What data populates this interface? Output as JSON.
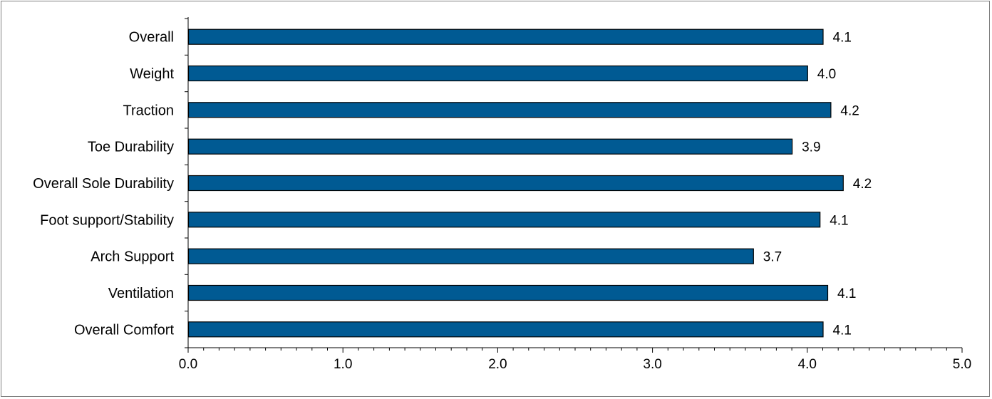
{
  "chart_data": {
    "type": "bar",
    "orientation": "horizontal",
    "title": "",
    "xlabel": "",
    "ylabel": "",
    "xlim": [
      0,
      5
    ],
    "x_ticks": [
      "0.0",
      "1.0",
      "2.0",
      "3.0",
      "4.0",
      "5.0"
    ],
    "x_minor_step": 0.1,
    "grid": false,
    "legend": "none",
    "bar_color": "#005A93",
    "categories": [
      "Overall",
      "Weight",
      "Traction",
      "Toe Durability",
      "Overall Sole Durability",
      "Foot support/Stability",
      "Arch Support",
      "Ventilation",
      "Overall Comfort"
    ],
    "values": [
      4.1,
      4.0,
      4.15,
      3.9,
      4.23,
      4.08,
      3.65,
      4.13,
      4.1
    ],
    "value_labels": [
      "4.1",
      "4.0",
      "4.2",
      "3.9",
      "4.2",
      "4.1",
      "3.7",
      "4.1",
      "4.1"
    ]
  }
}
